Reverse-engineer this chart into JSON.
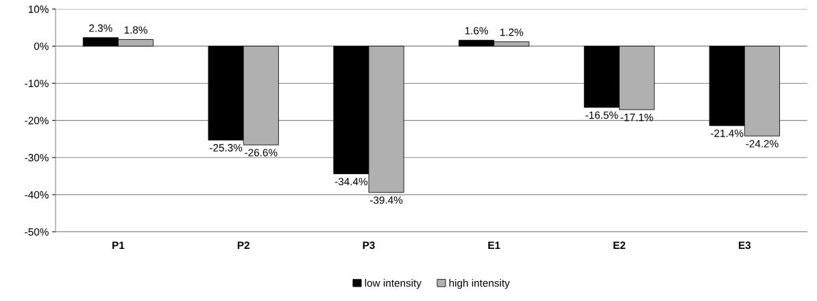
{
  "chart_data": {
    "type": "bar",
    "categories": [
      "P1",
      "P2",
      "P3",
      "E1",
      "E2",
      "E3"
    ],
    "series": [
      {
        "name": "low intensity",
        "color": "#000000",
        "values": [
          2.3,
          -25.3,
          -34.4,
          1.6,
          -16.5,
          -21.4
        ],
        "value_labels": [
          "2.3%",
          "-25.3%",
          "-34.4%",
          "1.6%",
          "-16.5%",
          "-21.4%"
        ]
      },
      {
        "name": "high intensity",
        "color": "#b0b0b0",
        "values": [
          1.8,
          -26.6,
          -39.4,
          1.2,
          -17.1,
          -24.2
        ],
        "value_labels": [
          "1.8%",
          "-26.6%",
          "-39.4%",
          "1.2%",
          "-17.1%",
          "-24.2%"
        ]
      }
    ],
    "ylim": [
      -50,
      10
    ],
    "yticks": [
      {
        "value": 10,
        "label": "10%"
      },
      {
        "value": 0,
        "label": "0%"
      },
      {
        "value": -10,
        "label": "-10%"
      },
      {
        "value": -20,
        "label": "-20%"
      },
      {
        "value": -30,
        "label": "-30%"
      },
      {
        "value": -40,
        "label": "-40%"
      },
      {
        "value": -50,
        "label": "-50%"
      }
    ],
    "grid": "y",
    "legend": "bottom"
  }
}
